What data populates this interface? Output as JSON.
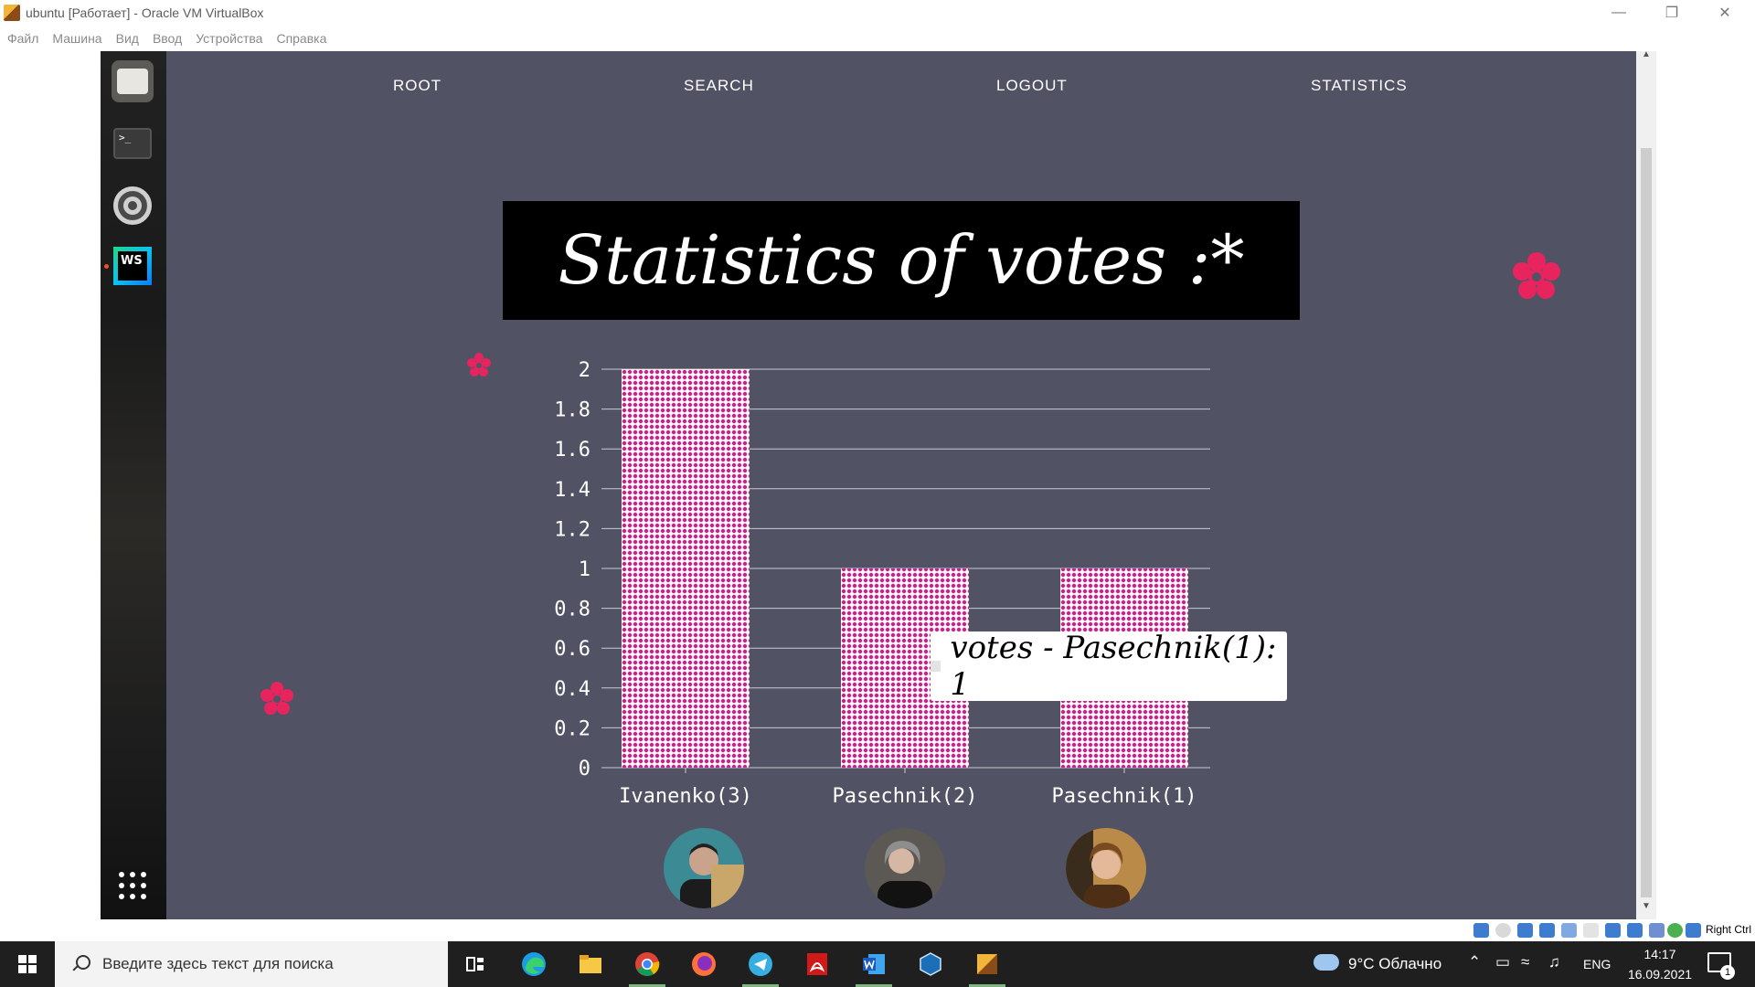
{
  "vbox": {
    "window_title": "ubuntu [Работает] - Oracle VM VirtualBox",
    "menu": [
      "Файл",
      "Машина",
      "Вид",
      "Ввод",
      "Устройства",
      "Справка"
    ],
    "host_key": "Right Ctrl"
  },
  "site": {
    "nav": [
      "ROOT",
      "SEARCH",
      "LOGOUT",
      "STATISTICS"
    ],
    "title": "Statistics of votes :*"
  },
  "chart_data": {
    "type": "bar",
    "categories": [
      "Ivanenko(3)",
      "Pasechnik(2)",
      "Pasechnik(1)"
    ],
    "series": [
      {
        "name": "votes",
        "values": [
          2,
          1,
          1
        ]
      }
    ],
    "ylim": [
      0,
      2
    ],
    "yticks": [
      "0",
      "0.2",
      "0.4",
      "0.6",
      "0.8",
      "1",
      "1.2",
      "1.4",
      "1.6",
      "1.8",
      "2"
    ],
    "bar_color": "#d81b8c",
    "grid": true,
    "tooltip": "votes - Pasechnik(1): 1"
  },
  "taskbar": {
    "search_placeholder": "Введите здесь текст для поиска",
    "weather": "9°C Облачно",
    "lang": "ENG",
    "time": "14:17",
    "date": "16.09.2021",
    "notifications": "1"
  },
  "colors": {
    "page_bg": "#515364",
    "accent_flower": "#e8245f"
  }
}
